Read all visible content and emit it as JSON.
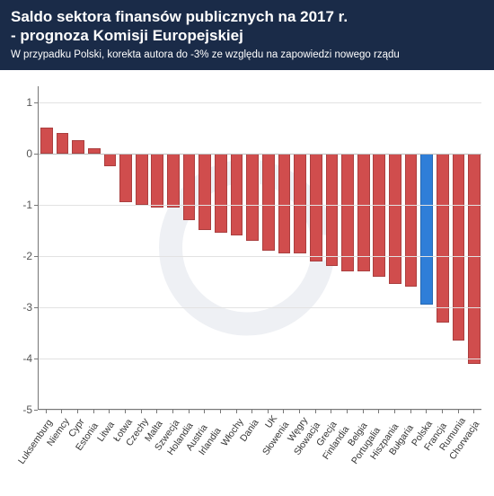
{
  "header": {
    "title_line1": "Saldo sektora finansów publicznych na 2017 r.",
    "title_line2": "- prognoza Komisji Europejskiej",
    "subtitle": "W przypadku Polski, korekta autora do -3% ze względu na zapowiedzi nowego rządu",
    "bg_color": "#1a2b48",
    "title_color": "#ffffff",
    "title_fontsize": 17,
    "subtitle_fontsize": 11.5
  },
  "chart": {
    "type": "bar",
    "ylim": [
      -5,
      1.3
    ],
    "yticks": [
      -5,
      -4,
      -3,
      -2,
      -1,
      0,
      1
    ],
    "grid_color": "#e2e2e2",
    "axis_color": "#777777",
    "bar_default_color": "#d04d4d",
    "bar_highlight_color": "#2f7ed8",
    "bar_border_color": "rgba(0,0,0,0.18)",
    "background_color": "#ffffff",
    "bar_width_ratio": 0.78,
    "label_fontsize": 10.5,
    "tick_fontsize": 12,
    "watermark_color": "#7a8aa8",
    "data": [
      {
        "label": "Luksemburg",
        "value": 0.5,
        "color": "#d04d4d"
      },
      {
        "label": "Niemcy",
        "value": 0.4,
        "color": "#d04d4d"
      },
      {
        "label": "Cypr",
        "value": 0.25,
        "color": "#d04d4d"
      },
      {
        "label": "Estonia",
        "value": 0.1,
        "color": "#d04d4d"
      },
      {
        "label": "Litwa",
        "value": -0.25,
        "color": "#d04d4d"
      },
      {
        "label": "Łotwa",
        "value": -0.95,
        "color": "#d04d4d"
      },
      {
        "label": "Czechy",
        "value": -1.0,
        "color": "#d04d4d"
      },
      {
        "label": "Malta",
        "value": -1.05,
        "color": "#d04d4d"
      },
      {
        "label": "Szwecja",
        "value": -1.05,
        "color": "#d04d4d"
      },
      {
        "label": "Holandia",
        "value": -1.3,
        "color": "#d04d4d"
      },
      {
        "label": "Austria",
        "value": -1.5,
        "color": "#d04d4d"
      },
      {
        "label": "Irlandia",
        "value": -1.55,
        "color": "#d04d4d"
      },
      {
        "label": "Włochy",
        "value": -1.6,
        "color": "#d04d4d"
      },
      {
        "label": "Dania",
        "value": -1.7,
        "color": "#d04d4d"
      },
      {
        "label": "UK",
        "value": -1.9,
        "color": "#d04d4d"
      },
      {
        "label": "Słowenia",
        "value": -1.95,
        "color": "#d04d4d"
      },
      {
        "label": "Węgry",
        "value": -1.95,
        "color": "#d04d4d"
      },
      {
        "label": "Słowacja",
        "value": -2.1,
        "color": "#d04d4d"
      },
      {
        "label": "Grecja",
        "value": -2.2,
        "color": "#d04d4d"
      },
      {
        "label": "Finlandia",
        "value": -2.3,
        "color": "#d04d4d"
      },
      {
        "label": "Belgia",
        "value": -2.3,
        "color": "#d04d4d"
      },
      {
        "label": "Portugalia",
        "value": -2.4,
        "color": "#d04d4d"
      },
      {
        "label": "Hiszpania",
        "value": -2.55,
        "color": "#d04d4d"
      },
      {
        "label": "Bułgaria",
        "value": -2.6,
        "color": "#d04d4d"
      },
      {
        "label": "Polska",
        "value": -2.95,
        "color": "#2f7ed8"
      },
      {
        "label": "Francja",
        "value": -3.3,
        "color": "#d04d4d"
      },
      {
        "label": "Rumunia",
        "value": -3.65,
        "color": "#d04d4d"
      },
      {
        "label": "Chorwacja",
        "value": -4.1,
        "color": "#d04d4d"
      }
    ]
  }
}
